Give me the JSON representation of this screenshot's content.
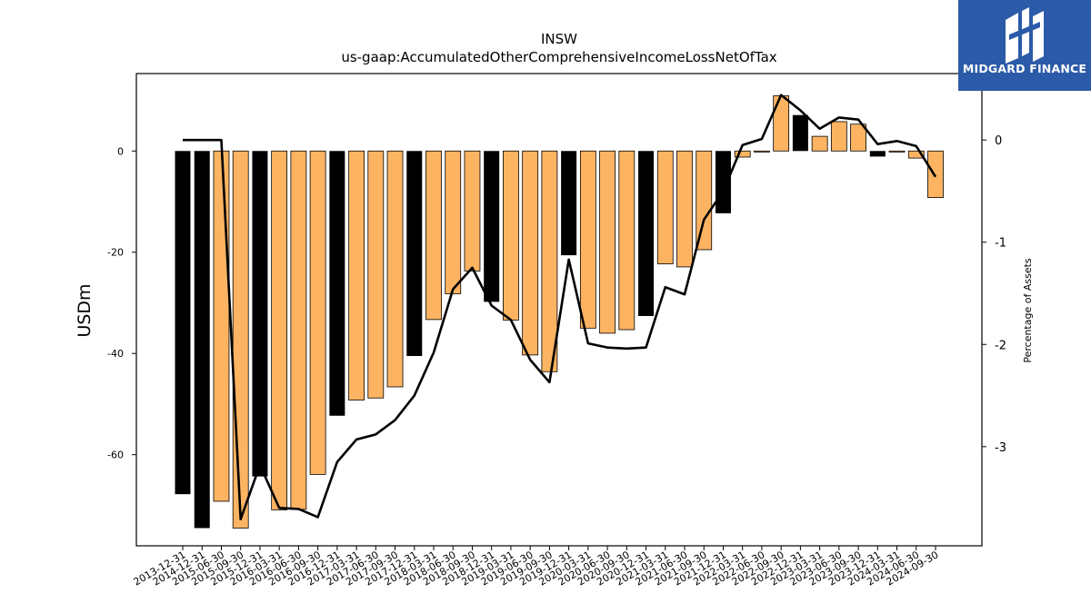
{
  "branding": {
    "logo_text": "MIDGARD FINANCE"
  },
  "chart_data": {
    "type": "bar",
    "title": "INSW",
    "subtitle": "us-gaap:AccumulatedOtherComprehensiveIncomeLossNetOfTax",
    "ylabel": "USDm",
    "y2label": "Percentage of Assets",
    "ylim": [
      -78,
      15.3
    ],
    "y2lim": [
      -3.97,
      0.65
    ],
    "yticks": [
      0,
      -20,
      -40,
      -60
    ],
    "y2ticks": [
      0,
      -1,
      -2,
      -3
    ],
    "colors": {
      "annual": "#000000",
      "quarterly": "#fdb462",
      "line": "#000000"
    },
    "categories": [
      "2013-12-31",
      "2014-12-31",
      "2015-06-30",
      "2015-09-30",
      "2015-12-31",
      "2016-03-31",
      "2016-06-30",
      "2016-09-30",
      "2016-12-31",
      "2017-03-31",
      "2017-06-30",
      "2017-09-30",
      "2017-12-31",
      "2018-03-31",
      "2018-06-30",
      "2018-09-30",
      "2018-12-31",
      "2019-03-31",
      "2019-06-30",
      "2019-09-30",
      "2019-12-31",
      "2020-03-31",
      "2020-06-30",
      "2020-09-30",
      "2020-12-31",
      "2021-03-31",
      "2021-06-30",
      "2021-09-30",
      "2021-12-31",
      "2022-03-31",
      "2022-06-30",
      "2022-09-30",
      "2022-12-31",
      "2023-03-31",
      "2023-06-30",
      "2023-09-30",
      "2023-12-31",
      "2024-03-31",
      "2024-06-30",
      "2024-09-30"
    ],
    "series": [
      {
        "type": "bar",
        "axis": "left",
        "values": [
          -67.8,
          -74.5,
          -69.2,
          -74.5,
          -64.3,
          -70.9,
          -70.8,
          -63.9,
          -52.3,
          -49.2,
          -48.8,
          -46.6,
          -40.5,
          -33.3,
          -28.2,
          -23.7,
          -29.8,
          -33.4,
          -40.3,
          -43.6,
          -20.6,
          -35.0,
          -36.0,
          -35.3,
          -32.6,
          -22.3,
          -22.9,
          -19.5,
          -12.3,
          -1.2,
          -0.2,
          10.9,
          7.1,
          2.9,
          5.8,
          5.3,
          -1.1,
          -0.2,
          -1.4,
          -9.2
        ],
        "annual": [
          true,
          true,
          false,
          false,
          true,
          false,
          false,
          false,
          true,
          false,
          false,
          false,
          true,
          false,
          false,
          false,
          true,
          false,
          false,
          false,
          true,
          false,
          false,
          false,
          true,
          false,
          false,
          false,
          true,
          false,
          false,
          false,
          true,
          false,
          false,
          false,
          true,
          false,
          false,
          false
        ]
      },
      {
        "type": "line",
        "axis": "right",
        "values": [
          0.0,
          0.0,
          0.0,
          -3.71,
          -3.18,
          -3.6,
          -3.61,
          -3.69,
          -3.15,
          -2.93,
          -2.88,
          -2.74,
          -2.5,
          -2.08,
          -1.46,
          -1.25,
          -1.62,
          -1.76,
          -2.15,
          -2.37,
          -1.17,
          -1.99,
          -2.03,
          -2.04,
          -2.03,
          -1.44,
          -1.51,
          -0.78,
          -0.5,
          -0.05,
          0.01,
          0.44,
          0.29,
          0.11,
          0.22,
          0.2,
          -0.04,
          -0.01,
          -0.06,
          -0.36
        ]
      }
    ]
  }
}
